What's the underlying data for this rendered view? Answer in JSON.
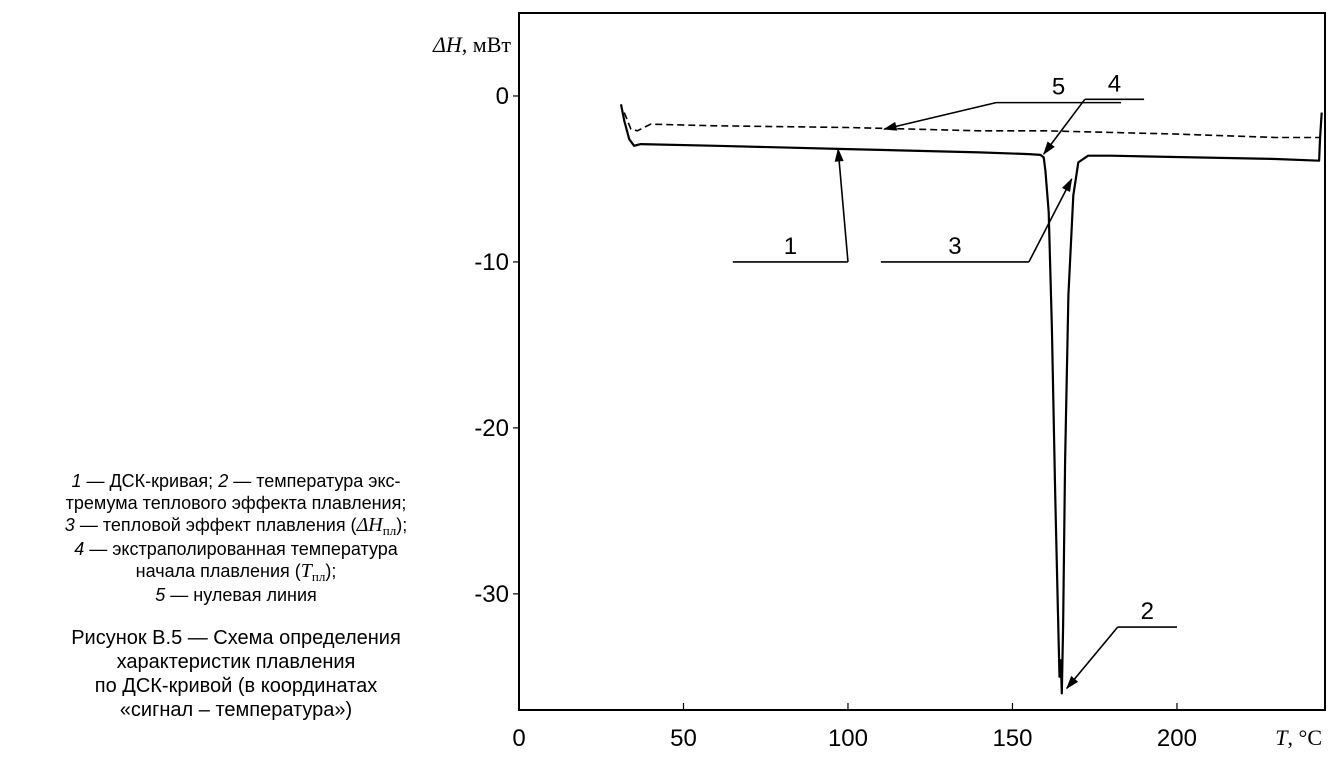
{
  "chart_data": {
    "type": "line",
    "ylabel_symbol": "ΔH",
    "ylabel_unit": ", мВт",
    "xlabel_symbol": "T",
    "xlabel_unit": ", °С",
    "xlim": [
      0,
      245
    ],
    "ylim": [
      -37,
      5
    ],
    "x_ticks": [
      0,
      50,
      100,
      150,
      200
    ],
    "y_ticks": [
      0,
      -10,
      -20,
      -30
    ],
    "x_tick_labels": [
      "0",
      "50",
      "100",
      "150",
      "200"
    ],
    "y_tick_labels": [
      "0",
      "-10",
      "-20",
      "-30"
    ],
    "grid": false,
    "series": [
      {
        "style": "solid",
        "x": [
          31,
          32,
          33.5,
          35,
          37,
          60,
          100,
          140,
          155,
          158.5,
          159.5,
          160,
          161,
          162,
          163,
          163.8,
          164.3,
          164.7,
          165,
          165.4,
          166,
          167,
          168.5,
          170,
          173,
          180,
          230,
          243.2,
          243.5,
          244
        ],
        "y": [
          -0.5,
          -1.5,
          -2.6,
          -3.0,
          -2.9,
          -3.0,
          -3.2,
          -3.4,
          -3.5,
          -3.55,
          -3.7,
          -4.5,
          -7,
          -14,
          -24,
          -31,
          -35,
          -34,
          -36,
          -32,
          -22,
          -12,
          -6,
          -4,
          -3.6,
          -3.6,
          -3.8,
          -3.9,
          -2.5,
          -1.0
        ]
      },
      {
        "style": "dashed",
        "x": [
          32,
          34,
          36,
          40,
          60,
          100,
          140,
          160,
          200,
          230,
          243.5
        ],
        "y": [
          -1.0,
          -2.0,
          -2.1,
          -1.7,
          -1.8,
          -1.9,
          -2.1,
          -2.1,
          -2.3,
          -2.5,
          -2.5
        ]
      }
    ],
    "annotations": [
      {
        "label": "1",
        "tail": [
          100,
          -10
        ],
        "head": [
          97,
          -3.2
        ],
        "shelf_to": 65
      },
      {
        "label": "3",
        "tail": [
          155,
          -10
        ],
        "head": [
          168,
          -5
        ],
        "shelf_to": 110
      },
      {
        "label": "4",
        "tail": [
          172,
          -0.2
        ],
        "head": [
          159.5,
          -3.5
        ],
        "shelf_to": 190
      },
      {
        "label": "5",
        "tail": [
          145,
          -0.4
        ],
        "head": [
          111,
          -2.0
        ],
        "shelf_to": 183
      },
      {
        "label": "2",
        "tail": [
          182,
          -32
        ],
        "head": [
          166.5,
          -35.7
        ],
        "shelf_to": 200
      }
    ]
  },
  "notes": [
    {
      "num": "1",
      "text": " — ДСК-кривая; "
    },
    {
      "num": "2",
      "text": " — температура экс-"
    },
    {
      "text": "тремума теплового эффекта плавления;"
    },
    {
      "num": "3",
      "text": " — тепловой эффект плавления ("
    },
    {
      "sym": "ΔH",
      "sub": "пл",
      "tail": ");"
    },
    {
      "num": "4",
      "text": " — экстраполированная температура"
    },
    {
      "text": "начала плавления ("
    },
    {
      "sym": "T",
      "sub": "пл",
      "tail": ");"
    },
    {
      "num": "5",
      "text": " — нулевая линия"
    }
  ],
  "figure_caption": [
    "Рисунок В.5 — Схема определения",
    "характеристик плавления",
    "по ДСК-кривой (в координатах",
    "«сигнал – температура»)"
  ]
}
